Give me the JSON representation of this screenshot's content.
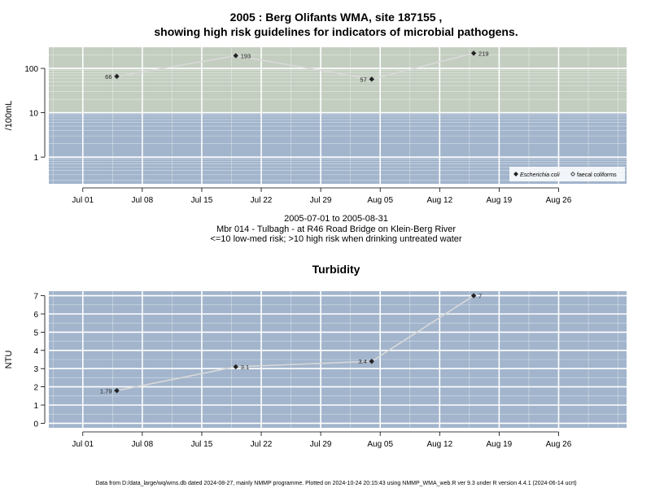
{
  "title_line1": "2005 : Berg Olifants WMA, site 187155 ,",
  "title_line2": "showing high risk guidelines for indicators of microbial pathogens.",
  "date_range": "2005-07-01 to 2005-08-31",
  "site_description": "Mbr 014 - Tulbagh - at R46 Road Bridge on Klein-Berg River",
  "risk_note": "<=10 low-med risk; >10 high risk when drinking untreated water",
  "footer": "Data from D:/data_large/wq/wms.db dated 2024-08-27, mainly NMMP programme. Plotted on 2024-10-24 20:15:43 using NMMP_WMA_web.R ver 9.3 under R version 4.4.1 (2024-06-14 ucrt)",
  "colors": {
    "high_risk_band": "#c3cec0",
    "low_risk_band": "#a2b5cc",
    "grid": "#ffffff",
    "line": "#d9d9d9",
    "marker": "#222222"
  },
  "chart_data": [
    {
      "type": "line",
      "title": "",
      "ylabel": "/100mL",
      "yscale": "log",
      "ylim": [
        0.25,
        300
      ],
      "xlim": [
        "2005-06-27",
        "2005-09-03"
      ],
      "xticks": [
        "Jul 01",
        "Jul 08",
        "Jul 15",
        "Jul 22",
        "Jul 29",
        "Aug 05",
        "Aug 12",
        "Aug 19",
        "Aug 26"
      ],
      "xtick_dates": [
        "2005-07-01",
        "2005-07-08",
        "2005-07-15",
        "2005-07-22",
        "2005-07-29",
        "2005-08-05",
        "2005-08-12",
        "2005-08-19",
        "2005-08-26"
      ],
      "yticks": [
        1,
        10,
        100
      ],
      "ytick_labels": [
        "1",
        "10",
        "100"
      ],
      "threshold": 10,
      "grid": true,
      "legend_position": "bottom-right",
      "legend": [
        {
          "label": "Escherichia coli",
          "marker": "filled-diamond",
          "italic": true
        },
        {
          "label": "faecal coliforms",
          "marker": "open-diamond",
          "italic": false
        }
      ],
      "series": [
        {
          "name": "Escherichia coli",
          "x": [
            "2005-07-05",
            "2005-07-19",
            "2005-08-04",
            "2005-08-16"
          ],
          "y": [
            66,
            193,
            57,
            219
          ],
          "labels": [
            "66",
            "193",
            "57",
            "219"
          ]
        }
      ]
    },
    {
      "type": "line",
      "title": "Turbidity",
      "ylabel": "NTU",
      "yscale": "linear",
      "ylim": [
        -0.25,
        7.25
      ],
      "xlim": [
        "2005-06-27",
        "2005-09-03"
      ],
      "xticks": [
        "Jul 01",
        "Jul 08",
        "Jul 15",
        "Jul 22",
        "Jul 29",
        "Aug 05",
        "Aug 12",
        "Aug 19",
        "Aug 26"
      ],
      "xtick_dates": [
        "2005-07-01",
        "2005-07-08",
        "2005-07-15",
        "2005-07-22",
        "2005-07-29",
        "2005-08-05",
        "2005-08-12",
        "2005-08-19",
        "2005-08-26"
      ],
      "yticks": [
        0,
        1,
        2,
        3,
        4,
        5,
        6,
        7
      ],
      "ytick_labels": [
        "0",
        "1",
        "2",
        "3",
        "4",
        "5",
        "6",
        "7"
      ],
      "grid": true,
      "series": [
        {
          "name": "",
          "x": [
            "2005-07-05",
            "2005-07-19",
            "2005-08-04",
            "2005-08-16"
          ],
          "y": [
            1.79,
            3.1,
            3.4,
            7
          ],
          "labels": [
            "1.79",
            "3.1",
            "3.4",
            "7"
          ]
        }
      ]
    }
  ]
}
